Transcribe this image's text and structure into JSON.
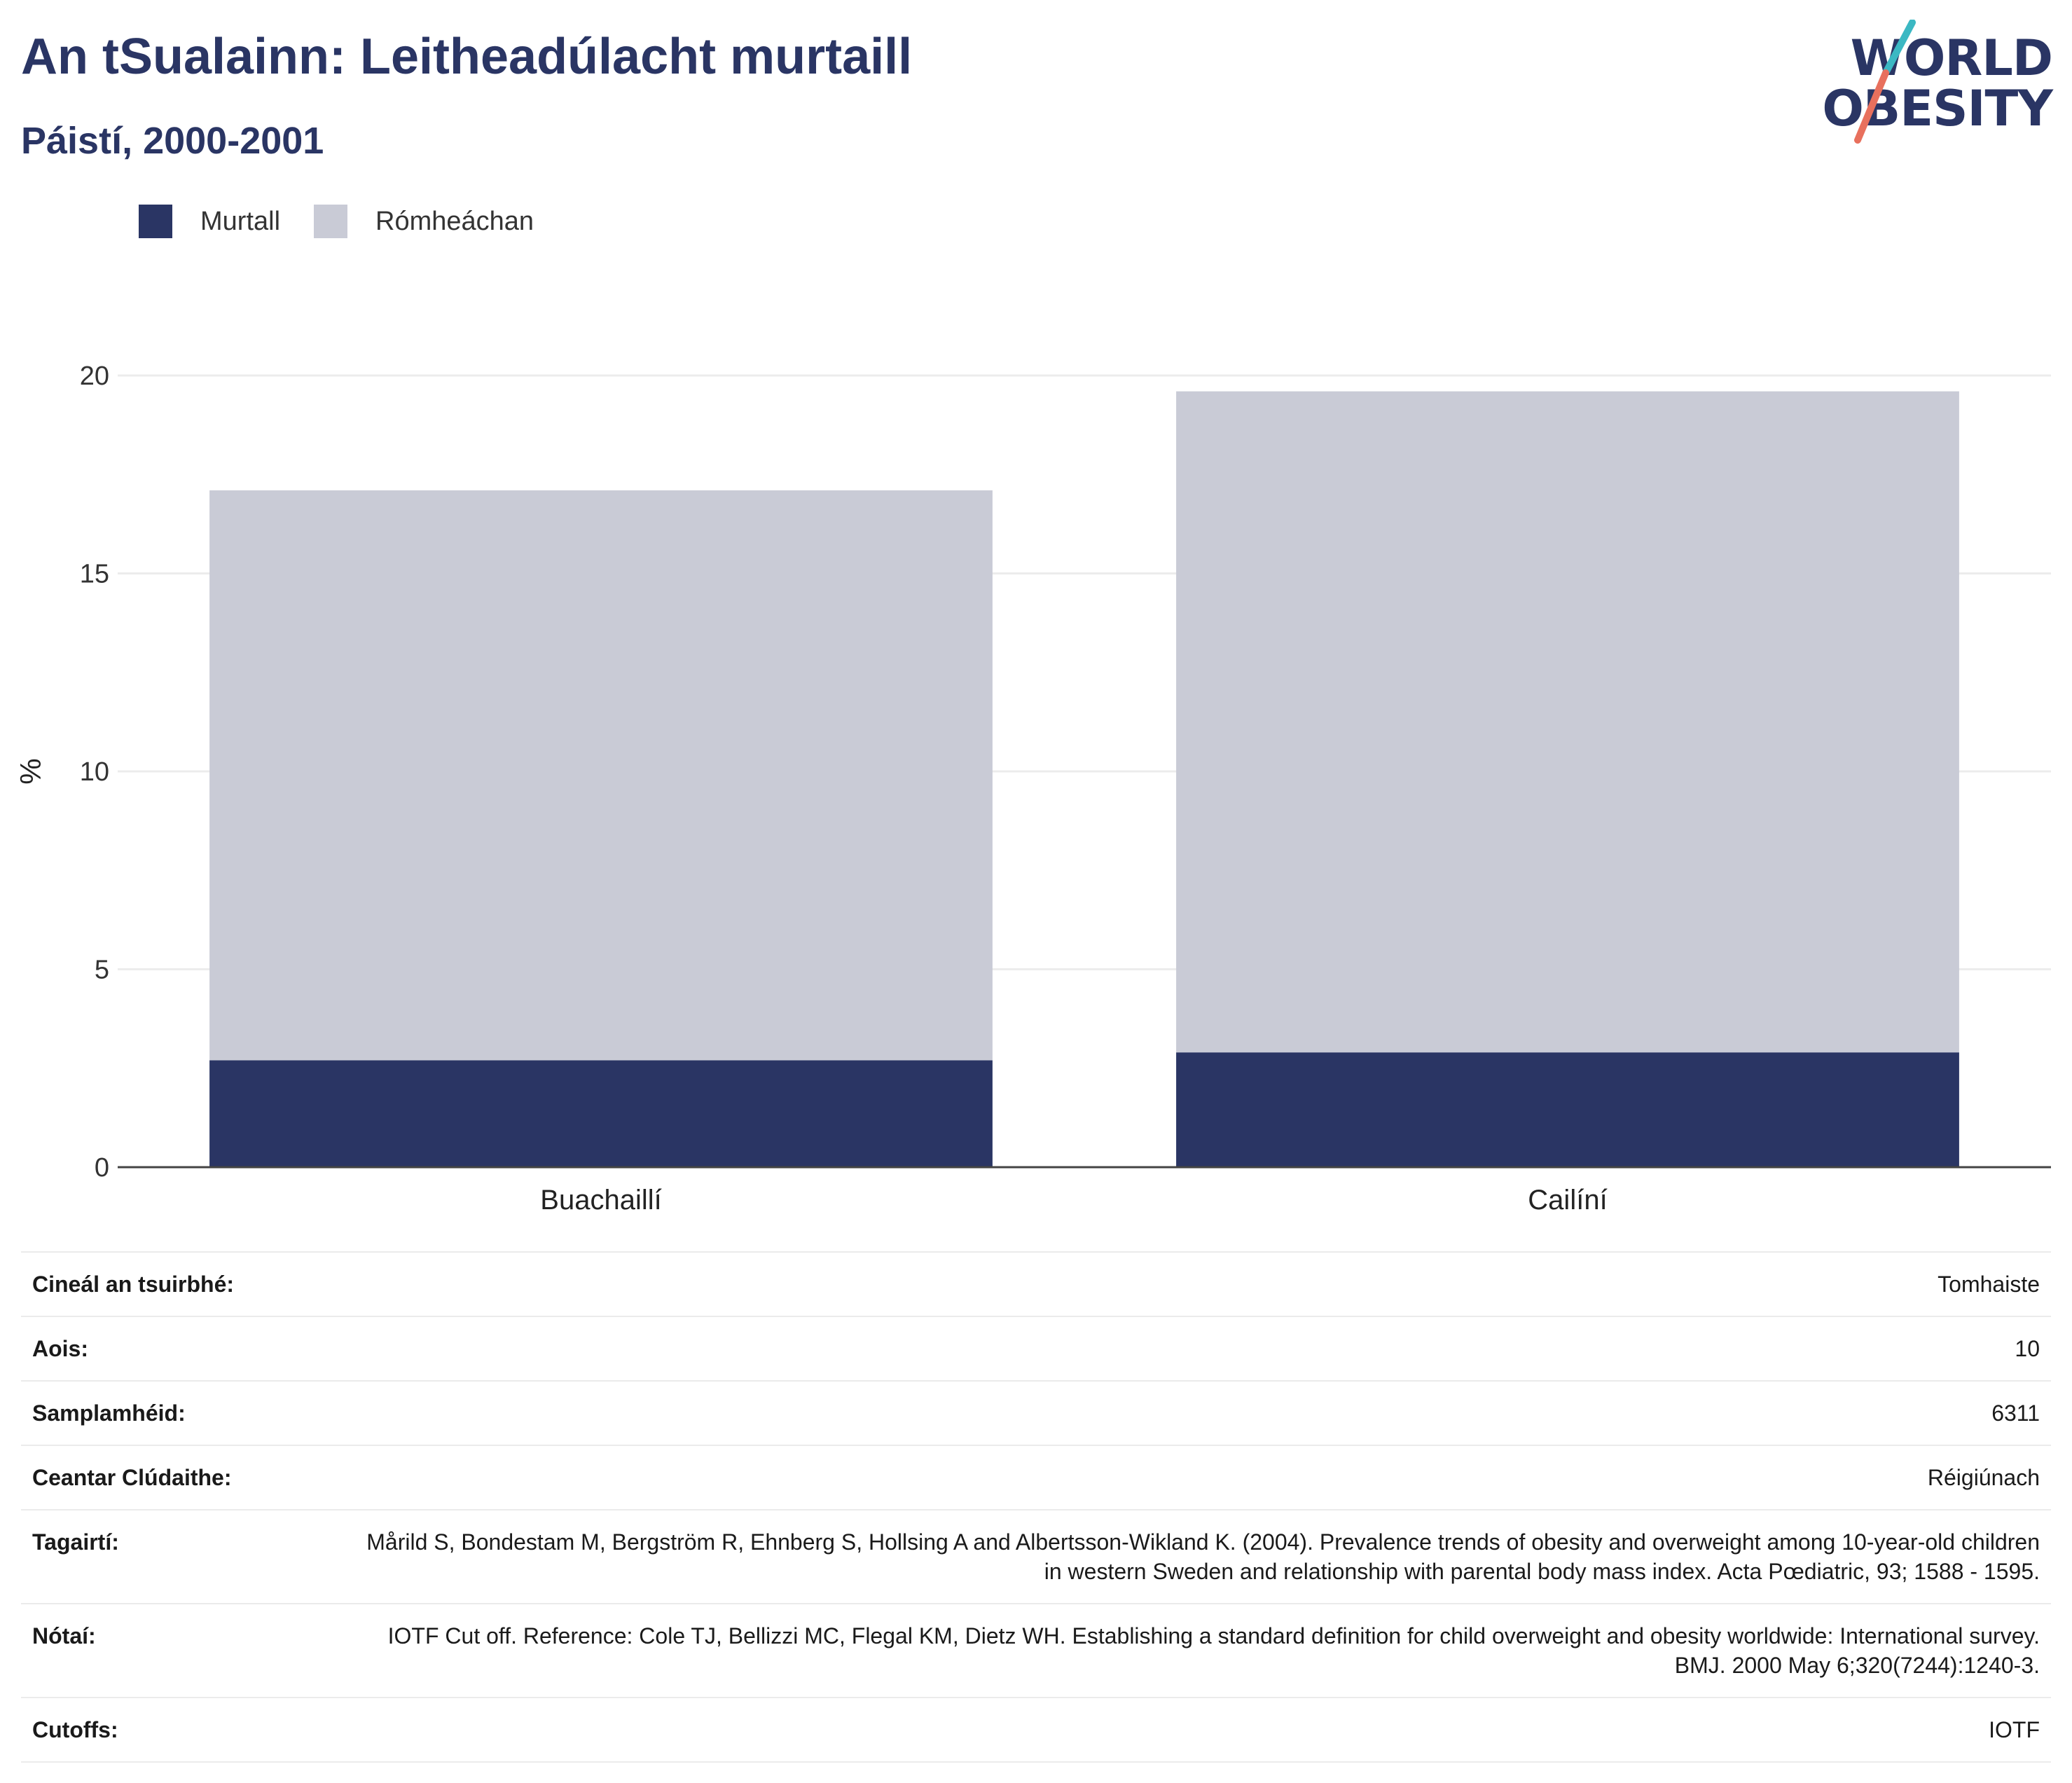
{
  "header": {
    "title": "An tSualainn: Leitheadúlacht murtaill",
    "subtitle": "Páistí, 2000-2001"
  },
  "logo": {
    "line1": "WORLD",
    "line2": "OBESITY"
  },
  "colors": {
    "primary": "#2a3564",
    "overweight": "#c9cbd6",
    "logo_teal": "#3bb8c3",
    "logo_coral": "#e8705d",
    "grid": "#ececec"
  },
  "chart_data": {
    "type": "bar",
    "stacked": true,
    "categories": [
      "Buachaillí",
      "Cailíní"
    ],
    "series": [
      {
        "name": "Murtall",
        "values": [
          2.7,
          2.9
        ],
        "color": "#2a3564"
      },
      {
        "name": "Rómheáchan",
        "values": [
          14.4,
          16.7
        ],
        "color": "#c9cbd6"
      }
    ],
    "ylabel": "%",
    "xlabel": "",
    "ylim": [
      0,
      20
    ],
    "yticks": [
      0,
      5,
      10,
      15,
      20
    ],
    "grid": true,
    "legend_position": "top-left"
  },
  "info": [
    {
      "key": "Cineál an tsuirbhé:",
      "value": "Tomhaiste"
    },
    {
      "key": "Aois:",
      "value": "10"
    },
    {
      "key": "Samplamhéid:",
      "value": "6311"
    },
    {
      "key": "Ceantar Clúdaithe:",
      "value": "Réigiúnach"
    },
    {
      "key": "Tagairtí:",
      "value": "Mårild S, Bondestam M, Bergström R, Ehnberg S, Hollsing A and Albertsson-Wikland K. (2004). Prevalence trends of obesity and overweight among 10-year-old children in western Sweden and relationship with parental body mass index. Acta Pœdiatric, 93; 1588 - 1595."
    },
    {
      "key": "Nótaí:",
      "value": "IOTF Cut off. Reference: Cole TJ, Bellizzi MC, Flegal KM, Dietz WH. Establishing a standard definition for child overweight and obesity worldwide: International survey. BMJ. 2000 May 6;320(7244):1240-3."
    },
    {
      "key": "Cutoffs:",
      "value": "IOTF"
    }
  ]
}
